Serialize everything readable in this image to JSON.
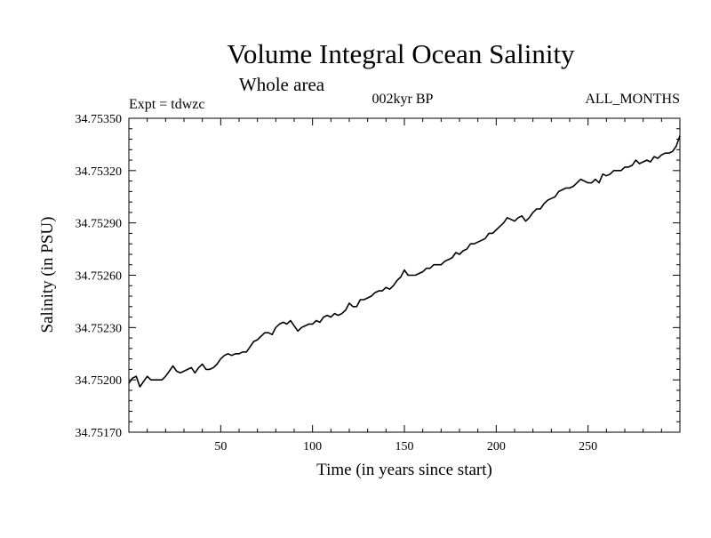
{
  "chart_data": {
    "type": "line",
    "title": "Volume Integral Ocean Salinity",
    "subtitle": "Whole area",
    "experiment_label": "Expt = tdwzc",
    "period_label": "002kyr BP",
    "months_label": "ALL_MONTHS",
    "xlabel": "Time (in years since start)",
    "ylabel": "Salinity (in PSU)",
    "xlim": [
      0,
      300
    ],
    "ylim": [
      34.7517,
      34.7535
    ],
    "xticks": [
      50,
      100,
      150,
      200,
      250
    ],
    "xtick_labels": [
      "50",
      "100",
      "150",
      "200",
      "250"
    ],
    "yticks": [
      34.7517,
      34.752,
      34.7523,
      34.7526,
      34.7529,
      34.7532,
      34.7535
    ],
    "ytick_labels": [
      "34.75170",
      "34.75200",
      "34.75230",
      "34.75260",
      "34.75290",
      "34.75320",
      "34.75350"
    ],
    "grid": false,
    "series": [
      {
        "x": [
          0,
          2,
          4,
          6,
          8,
          10,
          12,
          14,
          16,
          18,
          20,
          22,
          24,
          26,
          28,
          30,
          32,
          34,
          36,
          38,
          40,
          42,
          44,
          46,
          48,
          50,
          52,
          54,
          56,
          58,
          60,
          62,
          64,
          66,
          68,
          70,
          72,
          74,
          76,
          78,
          80,
          82,
          84,
          86,
          88,
          90,
          92,
          94,
          96,
          98,
          100,
          102,
          104,
          106,
          108,
          110,
          112,
          114,
          116,
          118,
          120,
          122,
          124,
          126,
          128,
          130,
          132,
          134,
          136,
          138,
          140,
          142,
          144,
          146,
          148,
          150,
          152,
          154,
          156,
          158,
          160,
          162,
          164,
          166,
          168,
          170,
          172,
          174,
          176,
          178,
          180,
          182,
          184,
          186,
          188,
          190,
          192,
          194,
          196,
          198,
          200,
          202,
          204,
          206,
          208,
          210,
          212,
          214,
          216,
          218,
          220,
          222,
          224,
          226,
          228,
          230,
          232,
          234,
          236,
          238,
          240,
          242,
          244,
          246,
          248,
          250,
          252,
          254,
          256,
          258,
          260,
          262,
          264,
          266,
          268,
          270,
          272,
          274,
          276,
          278,
          280,
          282,
          284,
          286,
          288,
          290,
          292,
          294,
          296,
          298,
          300
        ],
        "values": [
          34.75198,
          34.75201,
          34.75202,
          34.75196,
          34.75199,
          34.75202,
          34.752,
          34.752,
          34.752,
          34.752,
          34.75202,
          34.75205,
          34.75208,
          34.75205,
          34.75204,
          34.75205,
          34.75206,
          34.75207,
          34.75204,
          34.75207,
          34.75209,
          34.75206,
          34.75206,
          34.75207,
          34.75209,
          34.75212,
          34.75214,
          34.75215,
          34.75214,
          34.75215,
          34.75215,
          34.75216,
          34.75216,
          34.75219,
          34.75222,
          34.75223,
          34.75225,
          34.75227,
          34.75227,
          34.75226,
          34.7523,
          34.75232,
          34.75233,
          34.75232,
          34.75234,
          34.75231,
          34.75228,
          34.7523,
          34.75231,
          34.75232,
          34.75232,
          34.75234,
          34.75233,
          34.75236,
          34.75237,
          34.75236,
          34.75238,
          34.75237,
          34.75238,
          34.7524,
          34.75244,
          34.75242,
          34.75242,
          34.75246,
          34.75246,
          34.75247,
          34.75248,
          34.7525,
          34.75251,
          34.75251,
          34.75253,
          34.75252,
          34.75254,
          34.75257,
          34.75259,
          34.75263,
          34.7526,
          34.7526,
          34.7526,
          34.75261,
          34.75262,
          34.75264,
          34.75264,
          34.75266,
          34.75266,
          34.75266,
          34.75268,
          34.75269,
          34.7527,
          34.75273,
          34.75272,
          34.75274,
          34.75275,
          34.75278,
          34.75278,
          34.75279,
          34.7528,
          34.75281,
          34.75284,
          34.75284,
          34.75286,
          34.75288,
          34.7529,
          34.75293,
          34.75292,
          34.75291,
          34.75293,
          34.75294,
          34.75291,
          34.75293,
          34.75296,
          34.75298,
          34.75298,
          34.75301,
          34.75303,
          34.75304,
          34.75305,
          34.75308,
          34.75309,
          34.7531,
          34.7531,
          34.75311,
          34.75313,
          34.75315,
          34.75314,
          34.75313,
          34.75313,
          34.75315,
          34.75313,
          34.75318,
          34.75317,
          34.75318,
          34.7532,
          34.7532,
          34.7532,
          34.75322,
          34.75322,
          34.75323,
          34.75326,
          34.75324,
          34.75325,
          34.75326,
          34.75325,
          34.75328,
          34.75327,
          34.75329,
          34.7533,
          34.7533,
          34.75331,
          34.75334,
          34.7534
        ]
      }
    ]
  }
}
